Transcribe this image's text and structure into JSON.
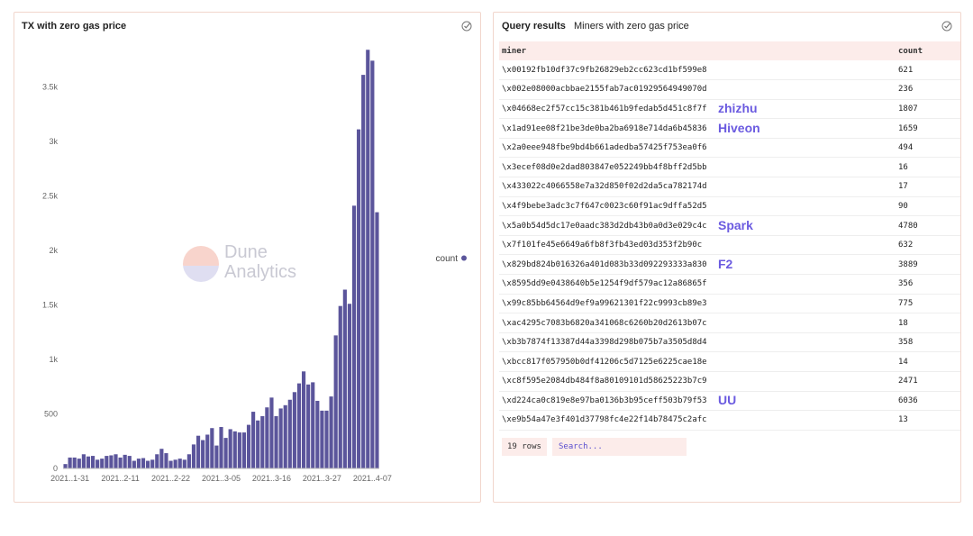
{
  "chart_panel": {
    "title": "TX with zero gas price",
    "watermark": "Dune\nAnalytics"
  },
  "table_panel": {
    "title": "Query results",
    "query_name": "Miners with zero gas price",
    "columns": [
      "miner",
      "count"
    ],
    "rows": [
      {
        "miner": "\\x00192fb10df37c9fb26829eb2cc623cd1bf599e8",
        "count": "621"
      },
      {
        "miner": "\\x002e08000acbbae2155fab7ac01929564949070d",
        "count": "236"
      },
      {
        "miner": "\\x04668ec2f57cc15c381b461b9fedab5d451c8f7f",
        "count": "1807"
      },
      {
        "miner": "\\x1ad91ee08f21be3de0ba2ba6918e714da6b45836",
        "count": "1659"
      },
      {
        "miner": "\\x2a0eee948fbe9bd4b661adedba57425f753ea0f6",
        "count": "494"
      },
      {
        "miner": "\\x3ecef08d0e2dad803847e052249bb4f8bff2d5bb",
        "count": "16"
      },
      {
        "miner": "\\x433022c4066558e7a32d850f02d2da5ca782174d",
        "count": "17"
      },
      {
        "miner": "\\x4f9bebe3adc3c7f647c0023c60f91ac9dffa52d5",
        "count": "90"
      },
      {
        "miner": "\\x5a0b54d5dc17e0aadc383d2db43b0a0d3e029c4c",
        "count": "4780"
      },
      {
        "miner": "\\x7f101fe45e6649a6fb8f3fb43ed03d353f2b90c",
        "count": "632"
      },
      {
        "miner": "\\x829bd824b016326a401d083b33d092293333a830",
        "count": "3889"
      },
      {
        "miner": "\\x8595dd9e0438640b5e1254f9df579ac12a86865f",
        "count": "356"
      },
      {
        "miner": "\\x99c85bb64564d9ef9a99621301f22c9993cb89e3",
        "count": "775"
      },
      {
        "miner": "\\xac4295c7083b6820a341068c6260b20d2613b07c",
        "count": "18"
      },
      {
        "miner": "\\xb3b7874f13387d44a3398d298b075b7a3505d8d4",
        "count": "358"
      },
      {
        "miner": "\\xbcc817f057950b0df41206c5d7125e6225cae18e",
        "count": "14"
      },
      {
        "miner": "\\xc8f595e2084db484f8a80109101d58625223b7c9",
        "count": "2471"
      },
      {
        "miner": "\\xd224ca0c819e8e97ba0136b3b95ceff503b79f53",
        "count": "6036"
      },
      {
        "miner": "\\xe9b54a47e3f401d37798fc4e22f14b78475c2afc",
        "count": "13"
      }
    ],
    "annotations": [
      {
        "row": 2,
        "label": "zhizhu"
      },
      {
        "row": 3,
        "label": "Hiveon"
      },
      {
        "row": 8,
        "label": "Spark"
      },
      {
        "row": 10,
        "label": "F2"
      },
      {
        "row": 17,
        "label": "UU"
      }
    ],
    "row_count_label": "19 rows",
    "search_placeholder": "Search..."
  },
  "colors": {
    "bar": "#5b559b",
    "accent": "#5a4fcf",
    "annotation": "#6b5be0",
    "header_bg": "#fcecea"
  },
  "chart_data": {
    "type": "bar",
    "title": "TX with zero gas price",
    "xlabel": "",
    "ylabel": "",
    "ylim": [
      0,
      3900
    ],
    "yticks": [
      0,
      500,
      1000,
      1500,
      2000,
      2500,
      3000,
      3500
    ],
    "ytick_labels": [
      "0",
      "500",
      "1k",
      "1.5k",
      "2k",
      "2.5k",
      "3k",
      "3.5k"
    ],
    "xtick_labels": [
      {
        "index": 1,
        "label": "2021..1-31"
      },
      {
        "index": 12,
        "label": "2021..2-11"
      },
      {
        "index": 23,
        "label": "2021..2-22"
      },
      {
        "index": 34,
        "label": "2021..3-05"
      },
      {
        "index": 45,
        "label": "2021..3-16"
      },
      {
        "index": 56,
        "label": "2021..3-27"
      },
      {
        "index": 67,
        "label": "2021..4-07"
      }
    ],
    "legend": {
      "label": "count",
      "position": "right"
    },
    "series": [
      {
        "name": "count",
        "values": [
          40,
          100,
          100,
          90,
          130,
          110,
          115,
          80,
          90,
          115,
          120,
          130,
          100,
          125,
          115,
          70,
          90,
          95,
          70,
          80,
          130,
          180,
          140,
          70,
          80,
          90,
          80,
          130,
          220,
          300,
          260,
          310,
          370,
          210,
          380,
          280,
          360,
          340,
          330,
          330,
          400,
          520,
          440,
          480,
          560,
          650,
          480,
          550,
          580,
          630,
          700,
          780,
          890,
          770,
          790,
          620,
          530,
          530,
          660,
          1220,
          1490,
          1640,
          1510,
          2410,
          3110,
          3610,
          3840,
          3740,
          2350
        ]
      }
    ]
  }
}
